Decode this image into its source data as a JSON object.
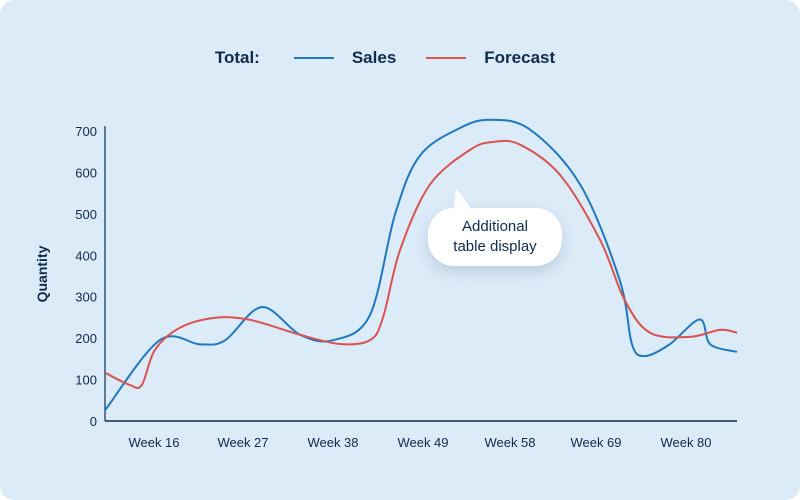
{
  "chart_data": {
    "type": "line",
    "legend_title": "Total:",
    "legend_placement": "top",
    "ylabel": "Quantity",
    "xlabel": "",
    "ylim": [
      0,
      700
    ],
    "yticks": [
      0,
      100,
      200,
      300,
      400,
      500,
      600,
      700
    ],
    "xticks": [
      "Week 16",
      "Week 27",
      "Week 38",
      "Week 49",
      "Week 58",
      "Week 69",
      "Week 80"
    ],
    "xtick_weeks": [
      16,
      27,
      38,
      49,
      58,
      69,
      80
    ],
    "xlim": [
      10,
      86.3
    ],
    "grid": false,
    "series": [
      {
        "name": "Sales",
        "color": "#1e78c2",
        "x": [
          10,
          16.7,
          21.7,
          24.8,
          29.3,
          34,
          38,
          42.5,
          45.6,
          48.6,
          52.8,
          56,
          60.6,
          67,
          71.9,
          73.4,
          75,
          78,
          81.7,
          83,
          86.3
        ],
        "y": [
          27,
          195,
          185,
          195,
          275,
          208,
          195,
          255,
          500,
          640,
          707,
          727,
          703,
          570,
          340,
          185,
          157,
          185,
          245,
          185,
          167
        ]
      },
      {
        "name": "Forecast",
        "color": "#d9534f",
        "x": [
          10,
          13,
          14.5,
          16.1,
          19.2,
          23.5,
          27.9,
          34,
          38.8,
          42.5,
          44.1,
          46.2,
          49.7,
          53.9,
          56.4,
          59.3,
          64.4,
          69.5,
          72.5,
          75.6,
          80.5,
          84.2,
          86.3
        ],
        "y": [
          116,
          87,
          87,
          171,
          225,
          249,
          244,
          208,
          186,
          195,
          249,
          413,
          570,
          655,
          674,
          667,
          594,
          437,
          292,
          213,
          203,
          220,
          213
        ]
      }
    ],
    "annotation": "Additional table display"
  }
}
